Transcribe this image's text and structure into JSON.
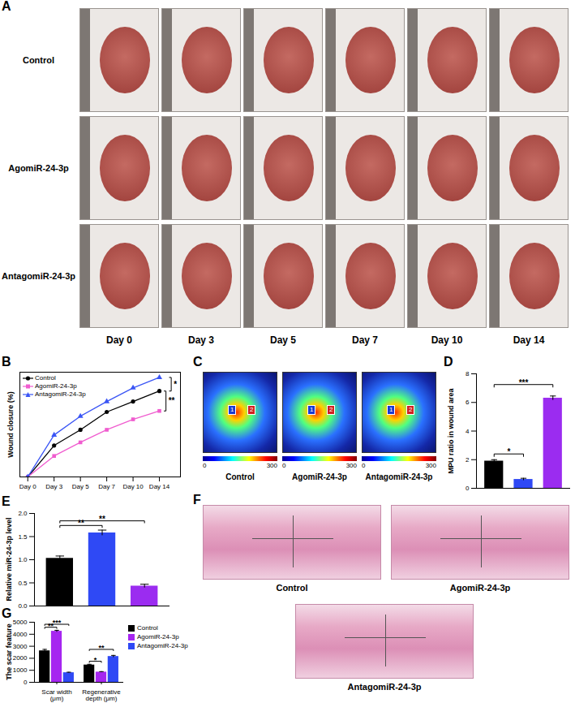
{
  "chart_data": [
    {
      "panel": "A",
      "type": "image_grid",
      "rows": [
        "Control",
        "AgomiR-24-3p",
        "AntagomiR-24-3p"
      ],
      "columns": [
        "Day 0",
        "Day 3",
        "Day 5",
        "Day 7",
        "Day 10",
        "Day 14"
      ]
    },
    {
      "panel": "B",
      "type": "line",
      "categories": [
        "Day 0",
        "Day 3",
        "Day 5",
        "Day 7",
        "Day 10",
        "Day 14"
      ],
      "ylabel": "Wound closure (%)",
      "ylim": [
        0,
        100
      ],
      "tick_labels": "x",
      "legend": "top-left",
      "series": [
        {
          "name": "Control",
          "color": "#000000",
          "marker": "circle",
          "values": [
            0,
            30,
            45,
            62,
            72,
            82
          ]
        },
        {
          "name": "AgomiR-24-3p",
          "color": "#f05ccf",
          "marker": "square",
          "values": [
            0,
            20,
            33,
            45,
            55,
            63
          ]
        },
        {
          "name": "AntagomiR-24-3p",
          "color": "#3a55f5",
          "marker": "triangle",
          "values": [
            0,
            40,
            58,
            72,
            85,
            95
          ]
        }
      ],
      "comparisons": [
        {
          "between": [
            0,
            1
          ],
          "label": "**"
        },
        {
          "between": [
            0,
            2
          ],
          "label": "*"
        }
      ]
    },
    {
      "panel": "C",
      "type": "image_row",
      "labels": [
        "Control",
        "AgomiR-24-3p",
        "AntagomiR-24-3p"
      ],
      "region_labels": [
        "1",
        "2"
      ],
      "colorbar": {
        "range": [
          0,
          300
        ],
        "ticks": [
          0,
          300
        ]
      }
    },
    {
      "panel": "D",
      "type": "bar",
      "categories": [
        null,
        null,
        null
      ],
      "values": [
        1.9,
        0.62,
        6.3
      ],
      "errors": [
        0.1,
        0.08,
        0.15
      ],
      "colors": [
        "#000000",
        "#2f49f5",
        "#9b2cf0"
      ],
      "ylabel": "MPU ratio in wound area",
      "ylim": [
        0,
        8
      ],
      "yticks": [
        0,
        2,
        4,
        6,
        8
      ],
      "tick_labels": "y",
      "comparisons": [
        {
          "between": [
            0,
            1
          ],
          "label": "*"
        },
        {
          "between": [
            0,
            2
          ],
          "label": "***"
        }
      ]
    },
    {
      "panel": "E",
      "type": "bar",
      "categories": [
        null,
        null,
        null
      ],
      "values": [
        1.03,
        1.58,
        0.43
      ],
      "errors": [
        0.05,
        0.06,
        0.04
      ],
      "colors": [
        "#000000",
        "#2f49f5",
        "#9b2cf0"
      ],
      "ylabel": "Relative miR-24-3p level",
      "ylim": [
        0,
        2
      ],
      "yticks": [
        {
          "value": 0,
          "label": "0.0"
        },
        {
          "value": 0.5,
          "label": "0.5"
        },
        {
          "value": 1,
          "label": "1.0"
        },
        {
          "value": 1.5,
          "label": "1.5"
        },
        {
          "value": 2,
          "label": "2.0"
        }
      ],
      "tick_labels": "y",
      "comparisons": [
        {
          "between": [
            0,
            1
          ],
          "label": "**"
        },
        {
          "between": [
            0,
            2
          ],
          "label": "**"
        }
      ]
    },
    {
      "panel": "F",
      "type": "image_set",
      "labels": [
        "Control",
        "AgomiR-24-3p",
        "AntagomiR-24-3p"
      ]
    },
    {
      "panel": "G",
      "type": "grouped_bar",
      "categories": [
        "Scar width\n(μm)",
        "Regenerative\ndepth (μm)"
      ],
      "ylabel": "The scar feature",
      "ylim": [
        0,
        5000
      ],
      "yticks": [
        0,
        1000,
        2000,
        3000,
        4000,
        5000
      ],
      "legend": "right",
      "series": [
        {
          "name": "Control",
          "color": "#000000",
          "values": [
            2620,
            1440
          ],
          "errors": [
            120,
            60
          ]
        },
        {
          "name": "AgomiR-24-3p",
          "color": "#a626f0",
          "values": [
            4250,
            850
          ],
          "errors": [
            80,
            40
          ]
        },
        {
          "name": "AntagomiR-24-3p",
          "color": "#2f49f5",
          "values": [
            800,
            2150
          ],
          "errors": [
            40,
            90
          ]
        }
      ],
      "comparisons": [
        {
          "category": 0,
          "between": [
            0,
            1
          ],
          "label": "**"
        },
        {
          "category": 0,
          "between": [
            0,
            2
          ],
          "label": "***"
        },
        {
          "category": 1,
          "between": [
            0,
            1
          ],
          "label": "*"
        },
        {
          "category": 1,
          "between": [
            0,
            2
          ],
          "label": "**"
        }
      ]
    }
  ]
}
